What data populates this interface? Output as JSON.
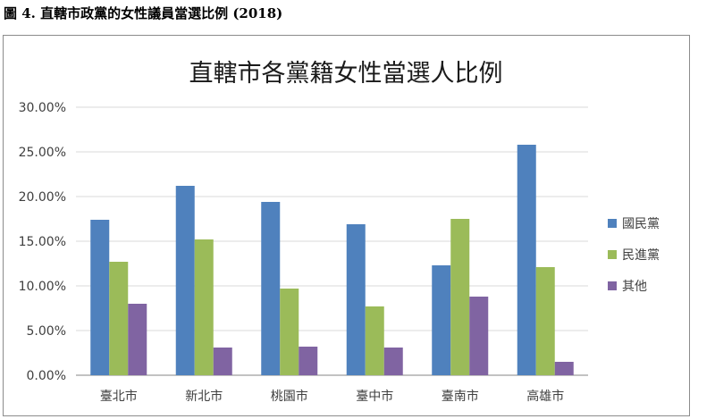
{
  "caption": "圖 4.  直轄市政黨的女性議員當選比例  (2018)",
  "chart_data": {
    "type": "bar",
    "title": "直轄市各黨籍女性當選人比例",
    "categories": [
      "臺北市",
      "新北市",
      "桃園市",
      "臺中市",
      "臺南市",
      "高雄市"
    ],
    "series": [
      {
        "name": "國民黨",
        "color": "#4f81bd",
        "values": [
          17.4,
          21.2,
          19.4,
          16.9,
          12.3,
          25.8
        ]
      },
      {
        "name": "民進黨",
        "color": "#9bbb59",
        "values": [
          12.7,
          15.2,
          9.7,
          7.7,
          17.5,
          12.1
        ]
      },
      {
        "name": "其他",
        "color": "#8064a2",
        "values": [
          8.0,
          3.1,
          3.2,
          3.1,
          8.8,
          1.5
        ]
      }
    ],
    "ylim": [
      0,
      30
    ],
    "yticks": [
      "0.00%",
      "5.00%",
      "10.00%",
      "15.00%",
      "20.00%",
      "25.00%",
      "30.00%"
    ],
    "xlabel": "",
    "ylabel": "",
    "grid": true,
    "legend_position": "right"
  }
}
